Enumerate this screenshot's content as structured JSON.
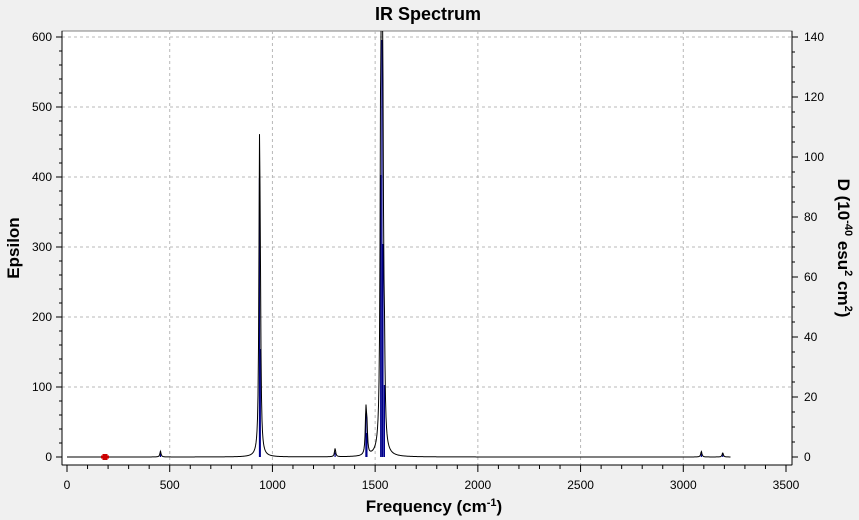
{
  "chart_data": {
    "type": "line",
    "title": "IR Spectrum",
    "xlabel": {
      "text": "Frequency (cm",
      "sup": "-1",
      "suffix": ")"
    },
    "ylabel_left": "Epsilon",
    "ylabel_right": {
      "text": "D (10",
      "sup1": "-40",
      "mid": " esu",
      "sup2": "2",
      "tail": " cm",
      "sup3": "2",
      "end": ")"
    },
    "xlim": [
      0,
      3500
    ],
    "ylim_left": [
      0,
      610
    ],
    "ylim_right": [
      0,
      142.3
    ],
    "x_ticks": [
      0,
      500,
      1000,
      1500,
      2000,
      2500,
      3000,
      3500
    ],
    "y_left_ticks": [
      0,
      100,
      200,
      300,
      400,
      500,
      600
    ],
    "y_right_ticks": [
      0,
      20,
      40,
      60,
      80,
      100,
      120,
      140
    ],
    "grid": true,
    "line_color": "#000000",
    "stick_color": "#00008b",
    "marker_color": "#cc0000",
    "marker_x": 185,
    "spectrum_series": {
      "name": "",
      "peaks": [
        {
          "x": 455,
          "epsilon": 8
        },
        {
          "x": 937,
          "epsilon": 395
        },
        {
          "x": 941,
          "epsilon": 150
        },
        {
          "x": 1305,
          "epsilon": 12
        },
        {
          "x": 1455,
          "epsilon": 60
        },
        {
          "x": 1460,
          "epsilon": 35
        },
        {
          "x": 1527,
          "epsilon": 400
        },
        {
          "x": 1533,
          "epsilon": 592
        },
        {
          "x": 1538,
          "epsilon": 300
        },
        {
          "x": 1545,
          "epsilon": 100
        },
        {
          "x": 3088,
          "epsilon": 8
        },
        {
          "x": 3192,
          "epsilon": 6
        }
      ]
    },
    "sticks": [
      {
        "x": 455,
        "D": 2
      },
      {
        "x": 937,
        "D": 93
      },
      {
        "x": 941,
        "D": 36
      },
      {
        "x": 1305,
        "D": 1.5
      },
      {
        "x": 1455,
        "D": 14.5
      },
      {
        "x": 1460,
        "D": 8
      },
      {
        "x": 1527,
        "D": 94
      },
      {
        "x": 1533,
        "D": 139
      },
      {
        "x": 1538,
        "D": 71
      },
      {
        "x": 1545,
        "D": 24
      },
      {
        "x": 3088,
        "D": 1.8
      },
      {
        "x": 3192,
        "D": 1.4
      }
    ]
  }
}
